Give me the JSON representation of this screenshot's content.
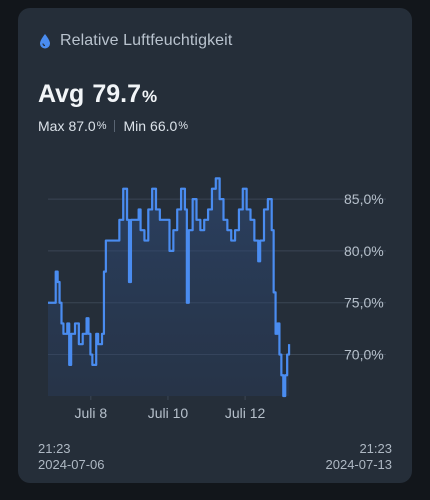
{
  "card": {
    "title": "Relative Luftfeuchtigkeit",
    "icon": "water-drop-icon",
    "accent_color": "#4a8cf0"
  },
  "summary": {
    "avg_label": "Avg",
    "avg_value": "79.7",
    "unit": "%",
    "max_label": "Max",
    "max_value": "87.0",
    "min_label": "Min",
    "min_value": "66.0"
  },
  "footer": {
    "start_time": "21:23",
    "start_date": "2024-07-06",
    "end_time": "21:23",
    "end_date": "2024-07-13"
  },
  "chart_data": {
    "type": "area",
    "title": "",
    "xlabel": "",
    "ylabel": "",
    "x_range": [
      "2024-07-06 21:23",
      "2024-07-13 21:23"
    ],
    "ylim": [
      66,
      88
    ],
    "y_ticks": [
      70,
      75,
      80,
      85
    ],
    "y_tick_labels": [
      "70,0%",
      "75,0%",
      "80,0%",
      "85,0%"
    ],
    "x_tick_labels": [
      {
        "label": "Juli 8",
        "t": 1.11
      },
      {
        "label": "Juli 10",
        "t": 3.11
      },
      {
        "label": "Juli 12",
        "t": 5.11
      }
    ],
    "grid": true,
    "series": [
      {
        "color": "#4a8cf0",
        "points": [
          [
            0.0,
            75.0
          ],
          [
            0.15,
            75.0
          ],
          [
            0.2,
            78.0
          ],
          [
            0.25,
            77.0
          ],
          [
            0.3,
            75.0
          ],
          [
            0.35,
            73.0
          ],
          [
            0.4,
            72.0
          ],
          [
            0.5,
            73.0
          ],
          [
            0.55,
            69.0
          ],
          [
            0.6,
            72.0
          ],
          [
            0.7,
            73.0
          ],
          [
            0.8,
            71.0
          ],
          [
            0.9,
            72.0
          ],
          [
            1.0,
            73.5
          ],
          [
            1.05,
            72.0
          ],
          [
            1.1,
            70.0
          ],
          [
            1.15,
            69.0
          ],
          [
            1.25,
            72.0
          ],
          [
            1.3,
            71.0
          ],
          [
            1.4,
            72.0
          ],
          [
            1.45,
            78.0
          ],
          [
            1.5,
            81.0
          ],
          [
            1.6,
            81.0
          ],
          [
            1.75,
            81.0
          ],
          [
            1.85,
            83.0
          ],
          [
            1.95,
            86.0
          ],
          [
            2.05,
            83.0
          ],
          [
            2.1,
            77.0
          ],
          [
            2.15,
            83.0
          ],
          [
            2.25,
            83.0
          ],
          [
            2.35,
            84.0
          ],
          [
            2.4,
            82.0
          ],
          [
            2.5,
            81.0
          ],
          [
            2.6,
            84.0
          ],
          [
            2.7,
            86.0
          ],
          [
            2.8,
            84.0
          ],
          [
            2.9,
            83.0
          ],
          [
            3.0,
            83.0
          ],
          [
            3.1,
            83.0
          ],
          [
            3.15,
            80.0
          ],
          [
            3.25,
            82.0
          ],
          [
            3.35,
            84.0
          ],
          [
            3.45,
            86.0
          ],
          [
            3.55,
            84.0
          ],
          [
            3.6,
            75.0
          ],
          [
            3.65,
            82.0
          ],
          [
            3.75,
            85.0
          ],
          [
            3.85,
            83.0
          ],
          [
            3.95,
            82.0
          ],
          [
            4.05,
            83.0
          ],
          [
            4.15,
            84.0
          ],
          [
            4.25,
            86.0
          ],
          [
            4.35,
            87.0
          ],
          [
            4.45,
            85.0
          ],
          [
            4.55,
            83.0
          ],
          [
            4.65,
            82.0
          ],
          [
            4.75,
            81.0
          ],
          [
            4.85,
            82.0
          ],
          [
            4.95,
            84.0
          ],
          [
            5.05,
            86.0
          ],
          [
            5.15,
            84.0
          ],
          [
            5.25,
            83.0
          ],
          [
            5.35,
            81.0
          ],
          [
            5.45,
            79.0
          ],
          [
            5.5,
            81.0
          ],
          [
            5.6,
            84.0
          ],
          [
            5.7,
            85.0
          ],
          [
            5.8,
            82.0
          ],
          [
            5.85,
            76.0
          ],
          [
            5.9,
            72.0
          ],
          [
            5.95,
            73.0
          ],
          [
            6.0,
            70.0
          ],
          [
            6.05,
            68.0
          ],
          [
            6.1,
            66.0
          ],
          [
            6.15,
            68.0
          ],
          [
            6.2,
            70.0
          ],
          [
            6.25,
            71.0
          ]
        ]
      }
    ]
  }
}
